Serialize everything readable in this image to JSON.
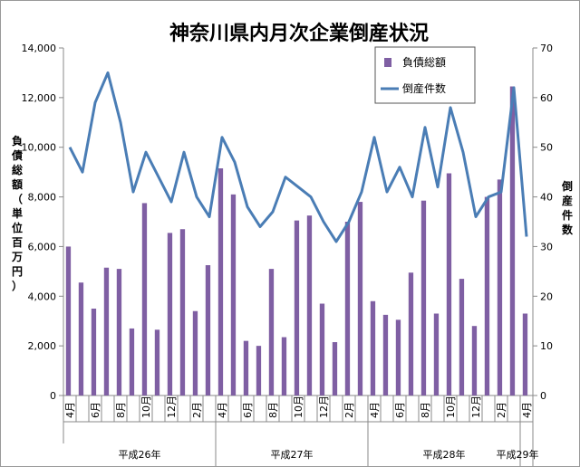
{
  "chart_data": {
    "type": "bar+line",
    "title": "神奈川県内月次企業倒産状況",
    "ylabel_left": "負債総額（単位百万円）",
    "ylabel_right": "倒産件数",
    "ylim_left": [
      0,
      14000
    ],
    "ylim_right": [
      0,
      70
    ],
    "yticks_left": [
      "0",
      "2,000",
      "4,000",
      "6,000",
      "8,000",
      "10,000",
      "12,000",
      "14,000"
    ],
    "yticks_right": [
      "0",
      "10",
      "20",
      "30",
      "40",
      "50",
      "60",
      "70"
    ],
    "legend_position": "top-right",
    "grid": false,
    "month_labels": [
      "4月",
      "",
      "6月",
      "",
      "8月",
      "",
      "10月",
      "",
      "12月",
      "",
      "2月",
      "",
      "4月",
      "",
      "6月",
      "",
      "8月",
      "",
      "10月",
      "",
      "12月",
      "",
      "2月",
      "",
      "4月",
      "",
      "6月",
      "",
      "8月",
      "",
      "10月",
      "",
      "12月",
      "",
      "2月",
      "",
      "4月"
    ],
    "year_groups": [
      {
        "label": "平成26年",
        "start": 0,
        "end": 11
      },
      {
        "label": "平成27年",
        "start": 12,
        "end": 23
      },
      {
        "label": "平成28年",
        "start": 24,
        "end": 35
      },
      {
        "label": "平成29年",
        "start": 36,
        "end": 36
      }
    ],
    "series": [
      {
        "name": "負債総額",
        "type": "bar",
        "axis": "left",
        "color": "#7f5fa3",
        "values": [
          6000,
          4550,
          3500,
          5150,
          5100,
          2700,
          7750,
          2650,
          6550,
          6700,
          3400,
          5250,
          9150,
          8100,
          2200,
          2000,
          5100,
          2350,
          7050,
          7250,
          3700,
          2150,
          7000,
          7800,
          3800,
          3250,
          3050,
          4950,
          7850,
          3300,
          8950,
          4700,
          2800,
          8000,
          8700,
          12450,
          3300
        ]
      },
      {
        "name": "倒産件数",
        "type": "line",
        "axis": "right",
        "color": "#4a7db5",
        "values": [
          50,
          45,
          59,
          65,
          55,
          41,
          49,
          44,
          39,
          49,
          40,
          36,
          52,
          47,
          38,
          34,
          37,
          44,
          42,
          40,
          35,
          31,
          35,
          41,
          52,
          41,
          46,
          40,
          54,
          42,
          58,
          49,
          36,
          40,
          41,
          62,
          32
        ]
      }
    ]
  },
  "colors": {
    "bar": "#7f5fa3",
    "line": "#4a7db5",
    "axis": "#888888"
  }
}
